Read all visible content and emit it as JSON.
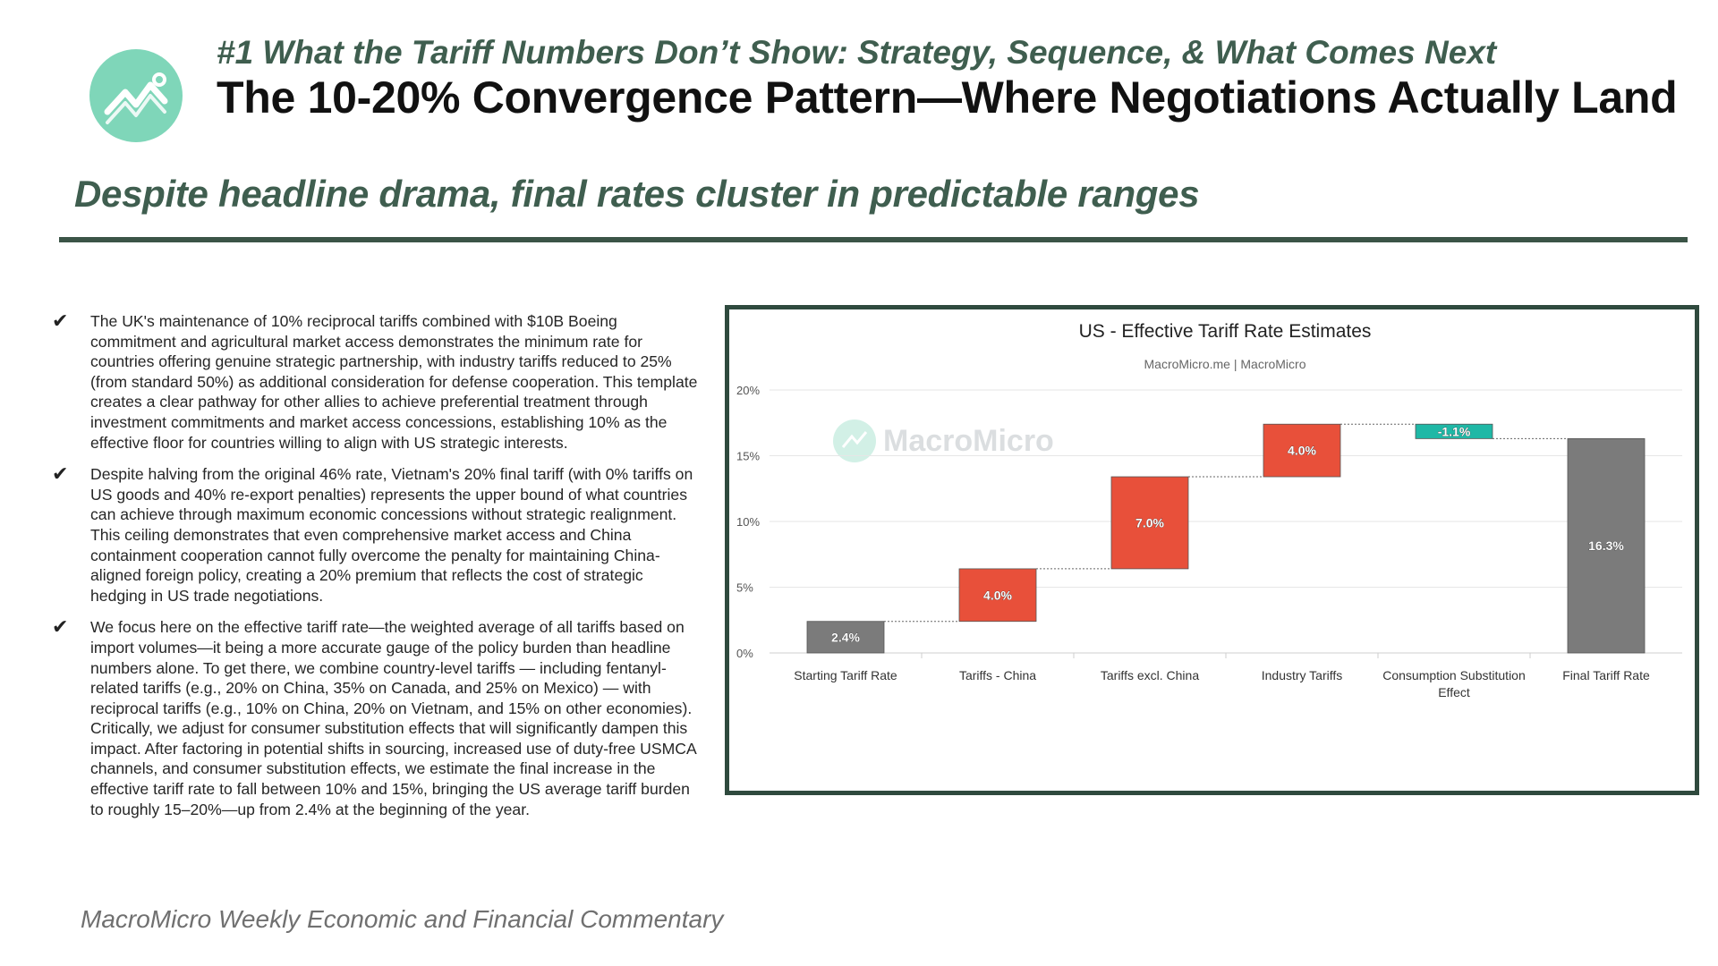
{
  "header": {
    "kicker": "#1 What the Tariff Numbers Don’t Show: Strategy, Sequence, & What Comes Next",
    "title": "The 10-20% Convergence Pattern—Where Negotiations Actually Land",
    "subtitle": "Despite headline drama, final rates cluster in predictable ranges"
  },
  "bullets": [
    {
      "icon": "checkmark-icon",
      "text": "The UK's maintenance of 10% reciprocal tariffs combined with $10B Boeing commitment and agricultural market access demonstrates the minimum rate for countries offering genuine strategic partnership, with industry tariffs reduced to 25% (from standard 50%) as additional consideration for defense cooperation. This template creates a clear pathway for other allies to achieve preferential treatment through investment commitments and market access concessions, establishing 10% as the effective floor for countries willing to align with US strategic interests."
    },
    {
      "icon": "checkmark-icon",
      "text": "Despite halving from the original 46% rate, Vietnam's 20% final tariff (with 0% tariffs on US goods and 40% re-export penalties) represents the upper bound of what countries can achieve through maximum economic concessions without strategic realignment. This ceiling demonstrates that even comprehensive market access and China containment cooperation cannot fully overcome the penalty for maintaining China-aligned foreign policy, creating a 20% premium that reflects the cost of strategic hedging in US trade negotiations."
    },
    {
      "icon": "checkmark-icon",
      "text": "We focus here on the effective tariff rate—the weighted average of all tariffs based on import volumes—it being a more accurate gauge of the policy burden than headline numbers alone. To get there, we combine country-level tariffs — including fentanyl-related tariffs (e.g., 20% on China, 35% on Canada, and 25% on Mexico) — with reciprocal tariffs (e.g., 10% on China, 20% on Vietnam, and 15% on other economies). Critically, we adjust for consumer substitution effects that will significantly dampen this impact. After factoring in potential shifts in sourcing, increased use of duty-free USMCA channels, and consumer substitution effects, we estimate the final increase in the effective tariff rate to fall between 10% and 15%, bringing the US average tariff burden to roughly 15–20%—up from 2.4% at the beginning of the year."
    }
  ],
  "footer": "MacroMicro Weekly Economic and Financial Commentary",
  "colors": {
    "accent_dark_green": "#3f5e4f",
    "logo_mint": "#7fd6b9",
    "bar_total": "#7b7b7b",
    "bar_increase": "#e8503a",
    "bar_decrease": "#1fb8a6"
  },
  "chart_data": {
    "type": "bar",
    "subtype": "waterfall",
    "title": "US - Effective Tariff Rate Estimates",
    "subtitle": "MacroMicro.me | MacroMicro",
    "watermark": "MacroMicro",
    "categories": [
      "Starting Tariff Rate",
      "Tariffs - China",
      "Tariffs excl. China",
      "Industry Tariffs",
      "Consumption Substitution Effect",
      "Final Tariff Rate"
    ],
    "values": [
      2.4,
      4.0,
      7.0,
      4.0,
      -1.1,
      16.3
    ],
    "kinds": [
      "total",
      "increase",
      "increase",
      "increase",
      "decrease",
      "total"
    ],
    "data_labels": [
      "2.4%",
      "4.0%",
      "7.0%",
      "4.0%",
      "-1.1%",
      "16.3%"
    ],
    "y_ticks": [
      "0%",
      "5%",
      "10%",
      "15%",
      "20%"
    ],
    "ylim": [
      0,
      20
    ],
    "grid": true,
    "legend": "none"
  }
}
